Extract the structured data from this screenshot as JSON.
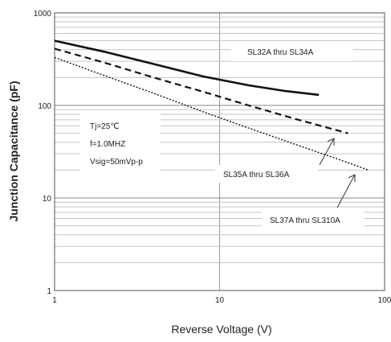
{
  "chart_data": {
    "type": "line",
    "xlabel": "Reverse Voltage (V)",
    "ylabel": "Junction Capacitance (pF)",
    "x_scale": "log",
    "y_scale": "log",
    "xlim": [
      1,
      100
    ],
    "ylim": [
      1,
      1000
    ],
    "x_ticks": [
      "1",
      "10",
      "100"
    ],
    "y_ticks": [
      "1",
      "10",
      "100",
      "1000"
    ],
    "grid": true,
    "conditions": [
      "Tj=25℃",
      "f=1.0MHZ",
      "Vsig=50mVp-p"
    ],
    "series": [
      {
        "name": "SL32A thru SL34A",
        "style": "solid",
        "points": [
          [
            1,
            500
          ],
          [
            2,
            380
          ],
          [
            4,
            280
          ],
          [
            8,
            205
          ],
          [
            15,
            165
          ],
          [
            25,
            143
          ],
          [
            40,
            130
          ]
        ]
      },
      {
        "name": "SL35A thru SL36A",
        "style": "dashed",
        "points": [
          [
            1,
            410
          ],
          [
            2,
            290
          ],
          [
            4,
            200
          ],
          [
            8,
            140
          ],
          [
            15,
            100
          ],
          [
            30,
            70
          ],
          [
            60,
            50
          ]
        ]
      },
      {
        "name": "SL37A thru SL310A",
        "style": "dotted",
        "points": [
          [
            1,
            330
          ],
          [
            2,
            210
          ],
          [
            4,
            135
          ],
          [
            8,
            85
          ],
          [
            15,
            57
          ],
          [
            30,
            37
          ],
          [
            50,
            27
          ],
          [
            80,
            20
          ]
        ]
      }
    ]
  }
}
